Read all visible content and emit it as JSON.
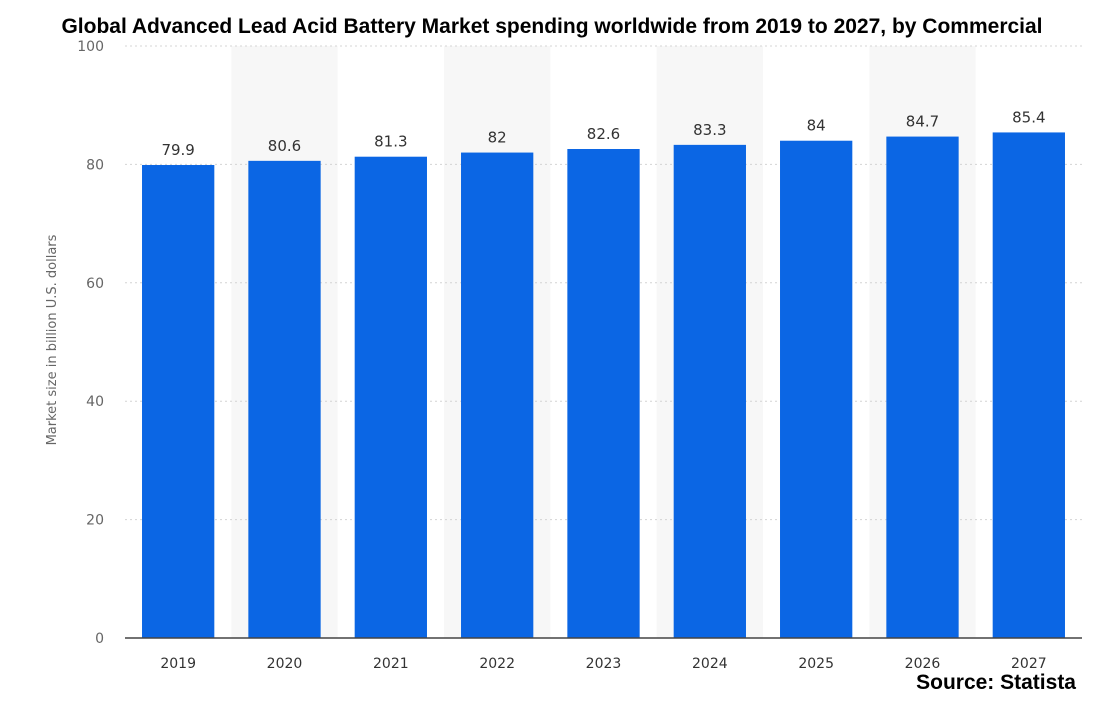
{
  "chart_data": {
    "type": "bar",
    "title": "Global Advanced Lead Acid Battery Market spending worldwide from 2019 to 2027, by Commercial",
    "xlabel": "",
    "ylabel": "Market size in billion U.S. dollars",
    "categories": [
      "2019",
      "2020",
      "2021",
      "2022",
      "2023",
      "2024",
      "2025",
      "2026",
      "2027"
    ],
    "values": [
      79.9,
      80.6,
      81.3,
      82,
      82.6,
      83.3,
      84,
      84.7,
      85.4
    ],
    "data_labels": [
      "79.9",
      "80.6",
      "81.3",
      "82",
      "82.6",
      "83.3",
      "84",
      "84.7",
      "85.4"
    ],
    "ylim": [
      0,
      100
    ],
    "yticks": [
      0,
      20,
      40,
      60,
      80,
      100
    ],
    "grid": true,
    "bar_color": "#0b66e4",
    "source": "Source: Statista"
  }
}
